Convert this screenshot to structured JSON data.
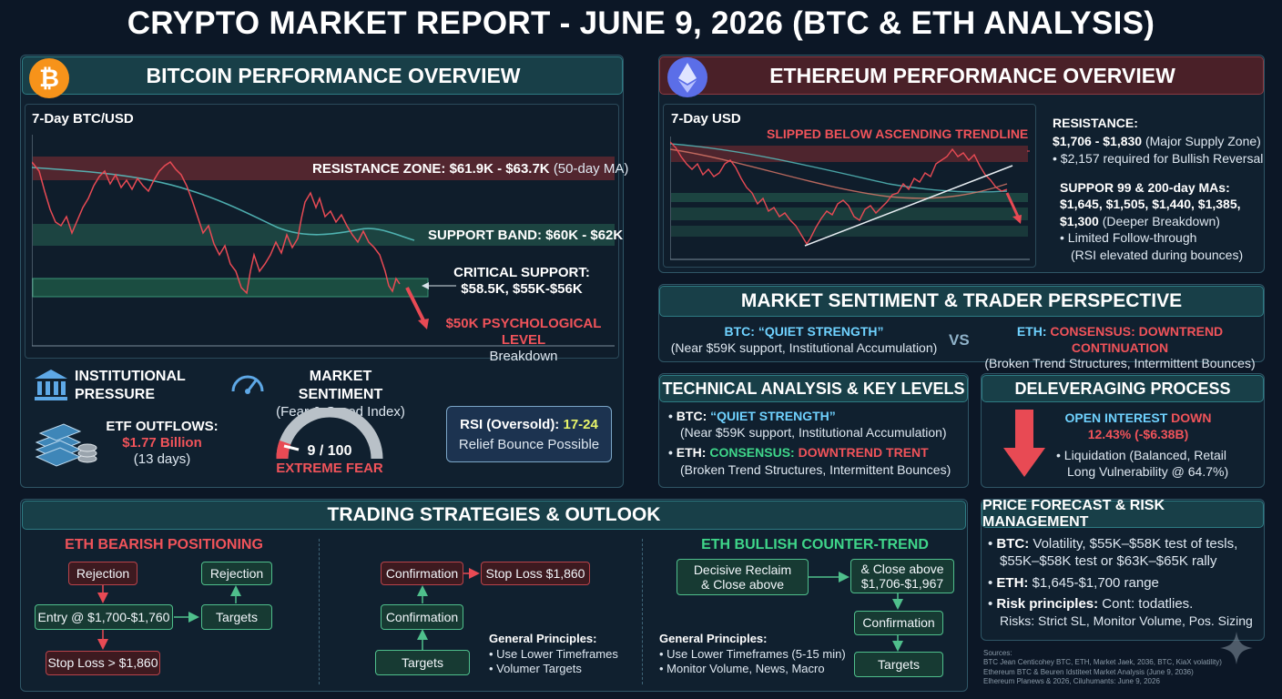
{
  "title": "CRYPTO MARKET REPORT - JUNE 9, 2026 (BTC & ETH ANALYSIS)",
  "btc": {
    "header": "BITCOIN PERFORMANCE OVERVIEW",
    "chart_label": "7-Day BTC/USD",
    "resistance_bold": "RESISTANCE ZONE: $61.9K - $63.7K",
    "resistance_note": "(50-day MA)",
    "support_band": "SUPPORT BAND: $60K - $62K",
    "critical_title": "CRITICAL SUPPORT:",
    "critical_values": "$58.5K, $55K-$56K",
    "psych_level": "$50K PSYCHOLOGICAL LEVEL",
    "psych_sub": "Breakdown",
    "institutional": "INSTITUTIONAL PRESSURE",
    "etf_label": "ETF OUTFLOWS:",
    "etf_value": "$1.77 Billion",
    "etf_days": "(13 days)",
    "sentiment_title": "MARKET SENTIMENT",
    "sentiment_sub": "(Fear & Greed Index)",
    "fg_value": "9 / 100",
    "fg_label": "EXTREME FEAR",
    "fg_level": 9,
    "rsi_label": "RSI (Oversold):",
    "rsi_value": "17-24",
    "rsi_sub": "Relief Bounce Possible"
  },
  "eth": {
    "header": "ETHEREUM PERFORMANCE OVERVIEW",
    "chart_label": "7-Day USD",
    "trendline_note": "SLIPPED BELOW ASCENDING TRENDLINE",
    "resistance_title": "RESISTANCE:",
    "resistance_values": "$1,706 - $1,830",
    "resistance_note": "(Major Supply Zone)",
    "reversal_note": "$2,157 required for Bullish Reversal",
    "support_title": "SUPPOR 99 & 200-day MAs:",
    "support_values_1": "$1,645, $1,505, $1,440, $1,385,",
    "support_values_2": "$1,300",
    "support_note": "(Deeper Breakdown)",
    "follow_1": "Limited Follow-through",
    "follow_2": "(RSI elevated during bounces)"
  },
  "sentiment": {
    "header": "MARKET SENTIMENT & TRADER PERSPECTIVE",
    "btc_label": "BTC: “QUIET STRENGTH”",
    "btc_sub": "(Near $59K support, Institutional Accumulation)",
    "vs": "VS",
    "eth_label_a": "ETH: ",
    "eth_label_b": "CONSENSUS: DOWNTREND CONTINUATION",
    "eth_sub": "(Broken Trend Structures, Intermittent Bounces)"
  },
  "technical": {
    "header": "TECHNICAL ANALYSIS & KEY LEVELS",
    "btc_label_a": "BTC: ",
    "btc_label_b": "“QUIET STRENGTH”",
    "btc_sub": "(Near $59K support, Institutional Accumulation)",
    "eth_label_a": "ETH: ",
    "eth_label_b": "CONSENSUS: ",
    "eth_label_c": "DOWNTREND TRENT",
    "eth_sub": "(Broken Trend Structures, Intermittent Bounces)"
  },
  "deleveraging": {
    "header": "DELEVERAGING PROCESS",
    "oi_a": "OPEN INTEREST ",
    "oi_b": "DOWN",
    "oi_value": "12.43% (-$6.38B)",
    "liq_1": "Liquidation (Balanced, Retail",
    "liq_2": "Long Vulnerability @ 64.7%)"
  },
  "trading": {
    "header": "TRADING STRATEGIES & OUTLOOK",
    "bearish": {
      "title": "ETH BEARISH POSITIONING",
      "rejection_1": "Rejection",
      "rejection_2": "Rejection",
      "entry": "Entry @ $1,700-$1,760",
      "targets": "Targets",
      "stop_loss": "Stop Loss > $1,860"
    },
    "middle": {
      "confirmation_1": "Confirmation",
      "stop_loss": "Stop Loss $1,860",
      "confirmation_2": "Confirmation",
      "targets": "Targets",
      "principles_title": "General Principles:",
      "principle_1": "Use Lower Timeframes",
      "principle_2": "Volumer Targets"
    },
    "bullish": {
      "title": "ETH BULLISH COUNTER-TREND",
      "reclaim_1": "Decisive Reclaim",
      "reclaim_2": "& Close above",
      "close_1": "& Close above",
      "close_2": "$1,706-$1,967",
      "confirmation": "Confirmation",
      "targets": "Targets",
      "principles_title": "General Principles:",
      "principle_1": "Use Lower Timeframes (5-15 min)",
      "principle_2": "Monitor Volume, News, Macro"
    }
  },
  "forecast": {
    "header": "PRICE FORECAST & RISK MANAGEMENT",
    "btc_label": "BTC:",
    "btc_text_1": " Volatility, $55K–$58K test of tesls,",
    "btc_text_2": "$55K–$58K test or $63K–$65K rally",
    "eth_label": "ETH:",
    "eth_text": " $1,645-$1,700 range",
    "risk_label": "Risk principles:",
    "risk_text_1": " Cont: todatlies.",
    "risk_text_2": "Risks: Strict SL, Monitor Volume, Pos. Sizing"
  },
  "sources": {
    "line_0": "Sources:",
    "line_1": "BTC Jean Centicohey BTC, ETH, Market Jaek, 2036, BTC, KiaX volatility)",
    "line_2": "Ethereum BTC & Beuren Idstiteet Market Analysis (June 9, 2036)",
    "line_3": "Elhereum Planews & 2026, Ciluhumants: June 9, 2026"
  },
  "colors": {
    "background": "#0c1726",
    "teal_header": "#183f48",
    "red_header": "#4a2028",
    "green": "#3fd68a",
    "red": "#f0535a",
    "cyan": "#6fd2ff"
  },
  "icons": [
    "bitcoin-logo-icon",
    "ethereum-logo-icon",
    "bank-icon",
    "cash-stack-icon",
    "speedometer-icon",
    "down-arrow-icon",
    "sparkle-icon"
  ]
}
